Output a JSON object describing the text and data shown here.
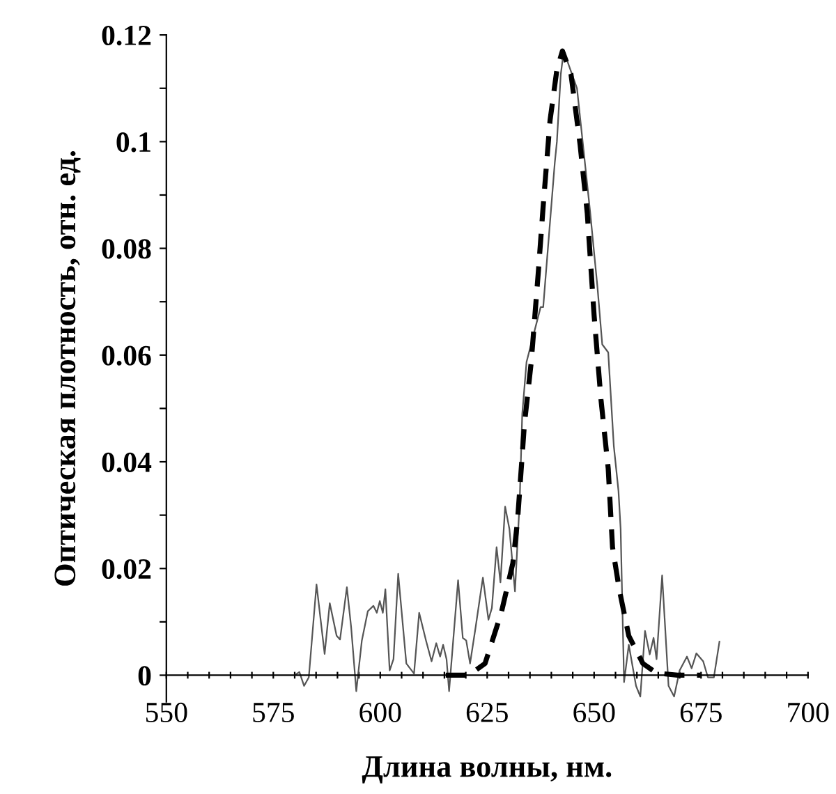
{
  "chart_data": {
    "type": "line",
    "xlabel": "Длина волны, нм.",
    "ylabel": "Оптическая плотность, отн. ед.",
    "xlim": [
      550,
      700
    ],
    "ylim": [
      -0.005,
      0.12
    ],
    "xticks": [
      550,
      {
        "value": 555,
        "label": null
      },
      {
        "value": 560,
        "label": null
      },
      {
        "value": 565,
        "label": null
      },
      {
        "value": 570,
        "label": null
      },
      575,
      {
        "value": 580,
        "label": null
      },
      {
        "value": 585,
        "label": null
      },
      {
        "value": 590,
        "label": null
      },
      {
        "value": 595,
        "label": null
      },
      600,
      {
        "value": 605,
        "label": null
      },
      {
        "value": 610,
        "label": null
      },
      {
        "value": 615,
        "label": null
      },
      {
        "value": 620,
        "label": null
      },
      625,
      {
        "value": 630,
        "label": null
      },
      {
        "value": 635,
        "label": null
      },
      {
        "value": 640,
        "label": null
      },
      {
        "value": 645,
        "label": null
      },
      650,
      {
        "value": 655,
        "label": null
      },
      {
        "value": 660,
        "label": null
      },
      {
        "value": 665,
        "label": null
      },
      {
        "value": 670,
        "label": null
      },
      675,
      {
        "value": 680,
        "label": null
      },
      {
        "value": 685,
        "label": null
      },
      {
        "value": 690,
        "label": null
      },
      {
        "value": 695,
        "label": null
      },
      700
    ],
    "yticks": [
      0,
      {
        "value": 0.01,
        "label": null
      },
      0.02,
      {
        "value": 0.03,
        "label": null
      },
      0.04,
      {
        "value": 0.05,
        "label": null
      },
      0.06,
      {
        "value": 0.07,
        "label": null
      },
      0.08,
      {
        "value": 0.09,
        "label": null
      },
      0.1,
      {
        "value": 0.11,
        "label": null
      },
      0.12
    ],
    "grid": false,
    "legend": false,
    "series": [
      {
        "color": "#555555",
        "line_style": "solid",
        "x": [
          580.0,
          581.1,
          582.2,
          583.3,
          585.1,
          587.0,
          588.2,
          589.8,
          590.6,
          592.2,
          593.2,
          594.4,
          595.7,
          597.1,
          598.4,
          599.2,
          599.9,
          600.6,
          601.2,
          602.2,
          603.1,
          604.2,
          606.1,
          607.9,
          609.1,
          610.7,
          612.0,
          613.1,
          614.0,
          614.7,
          615.5,
          616.1,
          618.2,
          619.3,
          620.1,
          621.0,
          622.3,
          624.0,
          625.3,
          626.1,
          627.2,
          628.1,
          629.2,
          630.2,
          631.5,
          632.6,
          633.2,
          634.2,
          637.5,
          638.1,
          640.8,
          641.3,
          642.2,
          642.9,
          646.0,
          649.1,
          650.8,
          651.9,
          653.3,
          654.6,
          655.7,
          656.2,
          657.0,
          658.1,
          659.8,
          660.8,
          661.9,
          663.0,
          663.9,
          664.6,
          665.9,
          667.4,
          668.7,
          670.0,
          671.7,
          672.8,
          673.9,
          675.5,
          676.6,
          678.0,
          679.3
        ],
        "values": [
          0,
          0.0006,
          -0.002,
          -0.0004,
          0.017,
          0.004,
          0.0135,
          0.0074,
          0.0067,
          0.0165,
          0.009,
          -0.003,
          0.0065,
          0.012,
          0.013,
          0.0117,
          0.0139,
          0.0117,
          0.0161,
          0.0009,
          0.003,
          0.019,
          0.0022,
          0.0003,
          0.0117,
          0.0065,
          0.0026,
          0.006,
          0.0035,
          0.0057,
          0.003,
          -0.003,
          0.0178,
          0.007,
          0.0065,
          0.0022,
          0.009,
          0.0183,
          0.0104,
          0.0126,
          0.024,
          0.0174,
          0.0316,
          0.0274,
          0.0157,
          0.0326,
          0.049,
          0.0587,
          0.069,
          0.069,
          0.096,
          0.1,
          0.1126,
          0.117,
          0.11,
          0.0866,
          0.0726,
          0.062,
          0.0605,
          0.043,
          0.0345,
          0.0274,
          -0.0013,
          0.0057,
          -0.002,
          -0.004,
          0.0083,
          0.0039,
          0.007,
          0.003,
          0.0187,
          -0.002,
          -0.004,
          0.0009,
          0.0035,
          0.0013,
          0.0041,
          0.0026,
          -0.0004,
          -0.0004,
          0.0063
        ]
      },
      {
        "color": "#000000",
        "line_style": "dashed",
        "x": [
          615.3,
          620.7,
          624.5,
          628.3,
          631.0,
          632.1,
          633.7,
          635.3,
          637.0,
          638.1,
          639.7,
          641.3,
          642.6,
          644.6,
          646.7,
          648.4,
          650.0,
          651.6,
          653.3,
          654.3,
          655.9,
          658.1,
          661.4,
          664.6,
          669.5,
          674.9
        ],
        "values": [
          0,
          0,
          0.0022,
          0.0117,
          0.021,
          0.029,
          0.047,
          0.0587,
          0.076,
          0.088,
          0.104,
          0.1135,
          0.117,
          0.1126,
          0.0996,
          0.0866,
          0.0674,
          0.0517,
          0.0387,
          0.024,
          0.016,
          0.0074,
          0.0022,
          0.0004,
          0,
          0
        ]
      }
    ]
  }
}
